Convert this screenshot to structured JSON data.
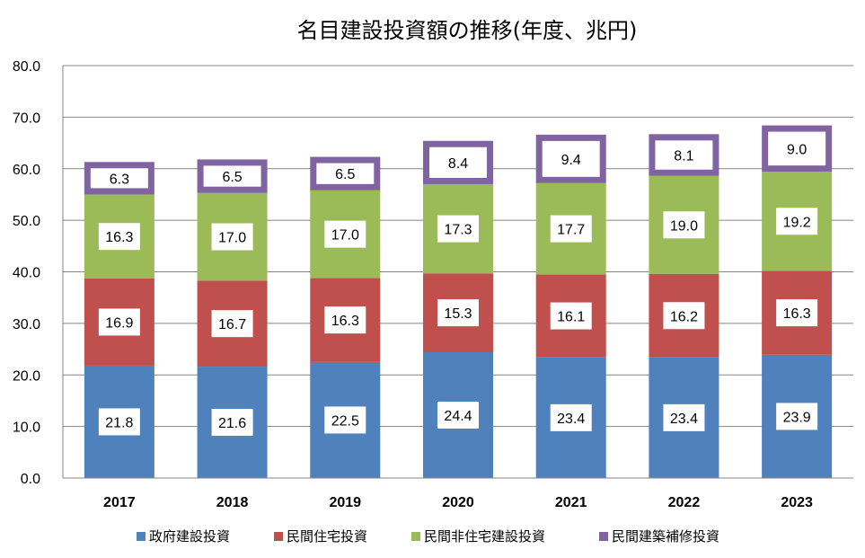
{
  "chart_data": {
    "type": "bar",
    "stacked": true,
    "title": "名目建設投資額の推移(年度、兆円)",
    "categories": [
      "2017",
      "2018",
      "2019",
      "2020",
      "2021",
      "2022",
      "2023"
    ],
    "series": [
      {
        "name": "政府建設投資",
        "color": "#4F81BD",
        "values": [
          21.8,
          21.6,
          22.5,
          24.4,
          23.4,
          23.4,
          23.9
        ]
      },
      {
        "name": "民間住宅投資",
        "color": "#C0504D",
        "values": [
          16.9,
          16.7,
          16.3,
          15.3,
          16.1,
          16.2,
          16.3
        ]
      },
      {
        "name": "民間非住宅建設投資",
        "color": "#9BBB59",
        "values": [
          16.3,
          17.0,
          17.0,
          17.3,
          17.7,
          19.0,
          19.2
        ]
      },
      {
        "name": "民間建築補修投資",
        "color": "#8064A2",
        "values": [
          6.3,
          6.5,
          6.5,
          8.4,
          9.4,
          8.1,
          9.0
        ]
      }
    ],
    "ylim": [
      0,
      80
    ],
    "yticks": [
      "0.0",
      "10.0",
      "20.0",
      "30.0",
      "40.0",
      "50.0",
      "60.0",
      "70.0",
      "80.0"
    ],
    "grid": true,
    "legend": "bottom"
  }
}
